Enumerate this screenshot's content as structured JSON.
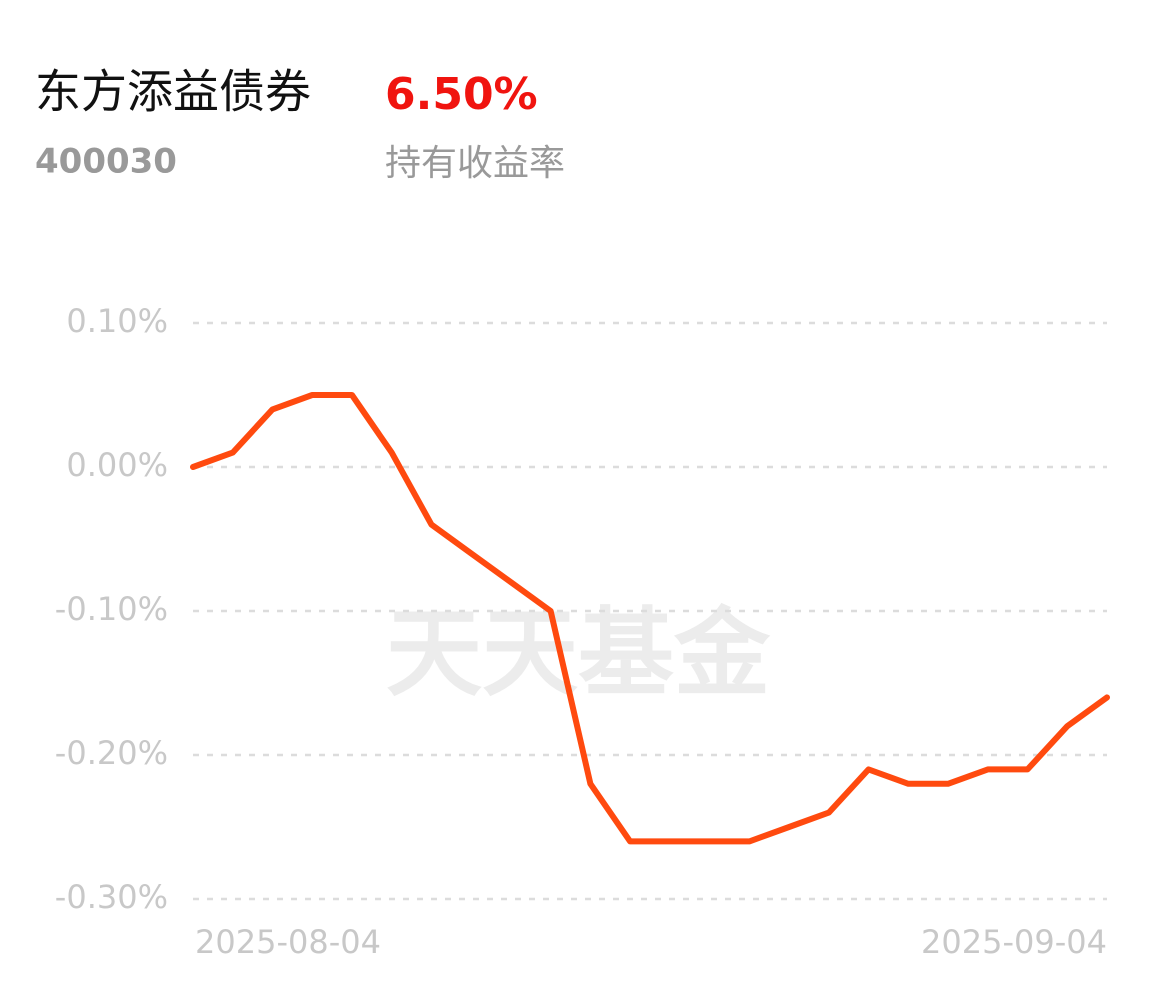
{
  "header": {
    "title": "东方添益债券",
    "code": "400030",
    "yield": "6.50%",
    "yield_label": "持有收益率"
  },
  "chart_data": {
    "type": "line",
    "watermark": "天天基金",
    "categories": [
      "2025-08-04",
      null,
      null,
      null,
      null,
      null,
      null,
      null,
      null,
      null,
      null,
      null,
      null,
      null,
      null,
      null,
      null,
      null,
      null,
      null,
      null,
      null,
      null,
      "2025-09-04"
    ],
    "series": [
      {
        "color": "#ff4a0f",
        "values": [
          0,
          0.01,
          0.04,
          0.05,
          0.05,
          0.01,
          -0.04,
          -0.06,
          -0.08,
          -0.1,
          -0.22,
          -0.26,
          -0.26,
          -0.26,
          -0.26,
          -0.25,
          -0.24,
          -0.21,
          -0.22,
          -0.22,
          -0.21,
          -0.21,
          -0.18,
          -0.16
        ]
      }
    ],
    "ylim": [
      -0.3,
      0.1
    ],
    "yticks": [
      {
        "value": 0.1,
        "label": "0.10%"
      },
      {
        "value": 0,
        "label": "0.00%"
      },
      {
        "value": -0.1,
        "label": "-0.10%"
      },
      {
        "value": -0.2,
        "label": "-0.20%"
      },
      {
        "value": -0.3,
        "label": "-0.30%"
      }
    ],
    "grid": true
  }
}
